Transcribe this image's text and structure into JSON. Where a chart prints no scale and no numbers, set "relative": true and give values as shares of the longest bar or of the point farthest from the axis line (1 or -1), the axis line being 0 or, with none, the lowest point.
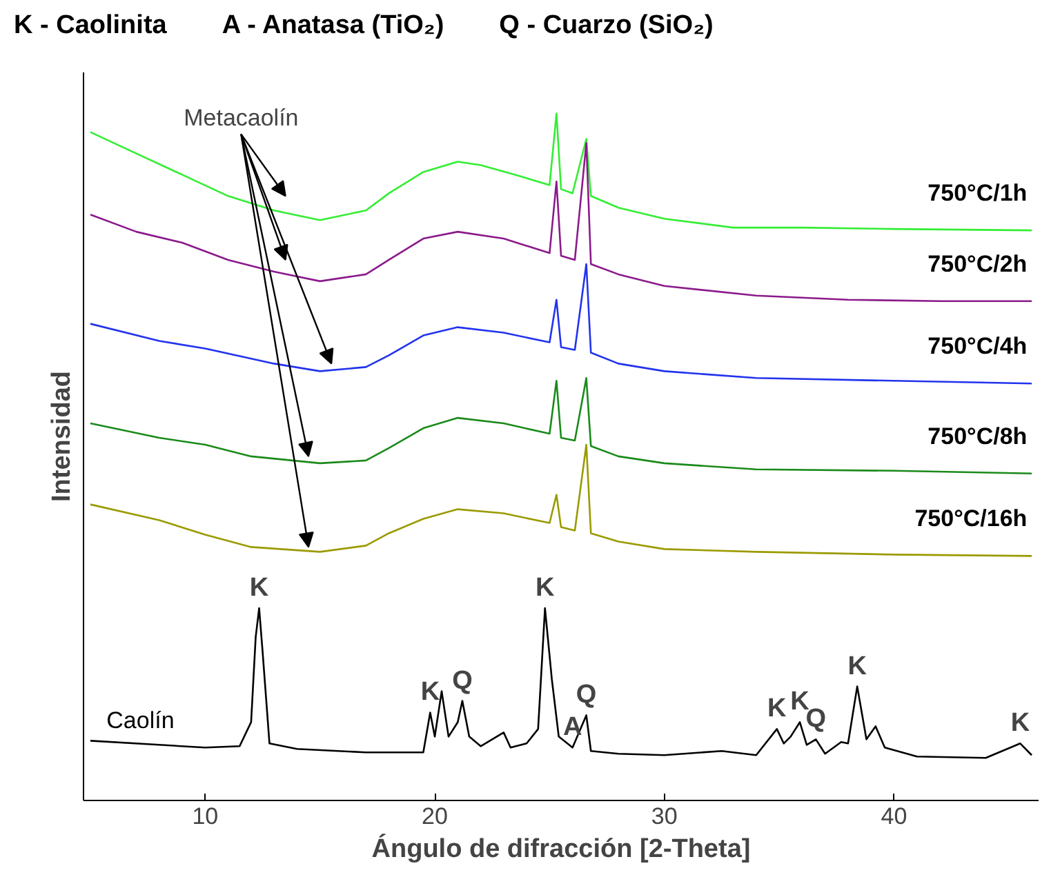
{
  "chart_data": {
    "type": "line",
    "relative": true,
    "xlabel": "Ángulo de difracción [2-Theta]",
    "ylabel": "Intensidad",
    "xlim": [
      4.7,
      46.3
    ],
    "xticks": [
      10,
      20,
      30,
      40
    ],
    "grid": false,
    "marker": "none",
    "line_style": "solid",
    "series": [
      {
        "name": "750°C/1h",
        "color": "#33ee33",
        "x": [
          5,
          7,
          9,
          11,
          13,
          15,
          17,
          18,
          19.5,
          21,
          22,
          23.5,
          25,
          25.3,
          25.5,
          26,
          26.6,
          26.8,
          28,
          30,
          33,
          36,
          40,
          46
        ],
        "values": [
          0.973,
          0.942,
          0.911,
          0.88,
          0.859,
          0.845,
          0.859,
          0.884,
          0.915,
          0.93,
          0.925,
          0.911,
          0.896,
          1.0,
          0.89,
          0.884,
          0.963,
          0.88,
          0.863,
          0.847,
          0.834,
          0.834,
          0.832,
          0.83
        ]
      },
      {
        "name": "750°C/2h",
        "color": "#8b1a8b",
        "x": [
          5,
          7,
          9,
          11,
          13,
          15,
          17,
          18,
          19.5,
          21,
          23,
          25,
          25.3,
          25.5,
          26.1,
          26.6,
          26.8,
          28,
          30,
          34,
          38,
          42,
          46
        ],
        "values": [
          0.853,
          0.828,
          0.812,
          0.787,
          0.77,
          0.756,
          0.766,
          0.787,
          0.818,
          0.828,
          0.818,
          0.797,
          0.901,
          0.793,
          0.787,
          0.957,
          0.781,
          0.766,
          0.749,
          0.735,
          0.729,
          0.727,
          0.727
        ]
      },
      {
        "name": "750°C/4h",
        "color": "#2233ee",
        "x": [
          5,
          8,
          10,
          13,
          15,
          17,
          18,
          19.5,
          21,
          23,
          25,
          25.3,
          25.5,
          26.1,
          26.6,
          26.8,
          28,
          30,
          34,
          40,
          46
        ],
        "values": [
          0.694,
          0.669,
          0.658,
          0.636,
          0.625,
          0.631,
          0.648,
          0.677,
          0.689,
          0.681,
          0.667,
          0.729,
          0.66,
          0.656,
          0.781,
          0.652,
          0.636,
          0.625,
          0.615,
          0.611,
          0.607
        ]
      },
      {
        "name": "750°C/8h",
        "color": "#1a8a1a",
        "x": [
          5,
          8,
          10,
          12,
          15,
          17,
          18,
          19.5,
          21,
          23,
          25,
          25.3,
          25.5,
          26.1,
          26.6,
          26.8,
          28,
          30,
          34,
          40,
          46
        ],
        "values": [
          0.549,
          0.528,
          0.518,
          0.501,
          0.491,
          0.495,
          0.513,
          0.542,
          0.557,
          0.549,
          0.534,
          0.611,
          0.528,
          0.524,
          0.615,
          0.516,
          0.501,
          0.491,
          0.482,
          0.48,
          0.476
        ]
      },
      {
        "name": "750°C/16h",
        "color": "#9a9a00",
        "x": [
          5,
          8,
          10,
          12,
          15,
          17,
          18,
          19.5,
          21,
          23,
          25,
          25.3,
          25.5,
          26.1,
          26.6,
          26.8,
          28,
          30,
          34,
          40,
          46
        ],
        "values": [
          0.431,
          0.408,
          0.387,
          0.369,
          0.362,
          0.371,
          0.389,
          0.41,
          0.424,
          0.418,
          0.404,
          0.445,
          0.398,
          0.393,
          0.518,
          0.389,
          0.377,
          0.366,
          0.362,
          0.358,
          0.356
        ]
      },
      {
        "name": "Caolín",
        "color": "#000000",
        "x": [
          5,
          8,
          10,
          11.5,
          12.0,
          12.2,
          12.35,
          12.5,
          12.8,
          14,
          17,
          19.5,
          19.8,
          20.0,
          20.3,
          20.6,
          21.0,
          21.2,
          21.5,
          22,
          23,
          23.3,
          24,
          24.5,
          24.8,
          25.1,
          25.4,
          26,
          26.6,
          26.8,
          28,
          30,
          32.5,
          34,
          34.9,
          35.2,
          35.5,
          35.9,
          36.2,
          36.6,
          37,
          37.7,
          38.0,
          38.4,
          38.8,
          39.2,
          39.6,
          41,
          44,
          45.5,
          46
        ],
        "values": [
          0.087,
          0.081,
          0.077,
          0.079,
          0.114,
          0.238,
          0.28,
          0.217,
          0.083,
          0.075,
          0.07,
          0.07,
          0.128,
          0.093,
          0.159,
          0.093,
          0.114,
          0.145,
          0.093,
          0.079,
          0.099,
          0.077,
          0.083,
          0.104,
          0.28,
          0.176,
          0.093,
          0.077,
          0.124,
          0.072,
          0.068,
          0.066,
          0.072,
          0.066,
          0.104,
          0.083,
          0.093,
          0.114,
          0.081,
          0.089,
          0.068,
          0.085,
          0.083,
          0.166,
          0.089,
          0.108,
          0.077,
          0.064,
          0.062,
          0.083,
          0.066
        ]
      }
    ],
    "annotations": [
      "K - Caolinita",
      "A - Anatasa (TiO₂)",
      "Q - Cuarzo (SiO₂)",
      "Metacaolín",
      {
        "text": "K",
        "x": 12.35,
        "y": 0.28
      },
      {
        "text": "K",
        "x": 19.8,
        "y": 0.128
      },
      {
        "text": "Q",
        "x": 21.2,
        "y": 0.145
      },
      {
        "text": "K",
        "x": 24.8,
        "y": 0.28
      },
      {
        "text": "A",
        "x": 26,
        "y": 0.077
      },
      {
        "text": "Q",
        "x": 26.6,
        "y": 0.124
      },
      {
        "text": "K",
        "x": 34.9,
        "y": 0.104
      },
      {
        "text": "K",
        "x": 35.9,
        "y": 0.114
      },
      {
        "text": "Q",
        "x": 36.6,
        "y": 0.089
      },
      {
        "text": "K",
        "x": 38.4,
        "y": 0.166
      },
      {
        "text": "K",
        "x": 45.5,
        "y": 0.083
      }
    ]
  }
}
